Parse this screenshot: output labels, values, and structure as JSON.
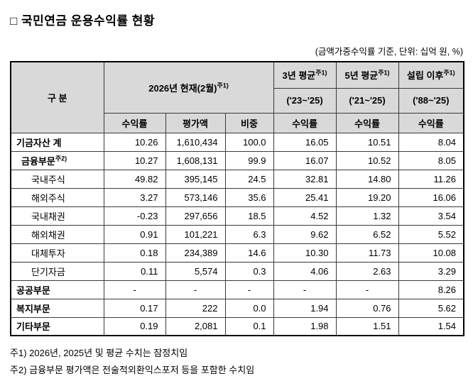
{
  "page": {
    "title": "□ 국민연금 운용수익률 현황",
    "subtitle": "(금액가중수익률 기준, 단위: 십억 원, %)"
  },
  "table": {
    "header": {
      "gubun": "구 분",
      "current": {
        "label": "2026년 현재(2월)",
        "sup": "주1)"
      },
      "avg3": {
        "label": "3년 평균",
        "sup": "주1)",
        "range": "('23~'25)"
      },
      "avg5": {
        "label": "5년 평균",
        "sup": "주1)",
        "range": "('21~'25)"
      },
      "inception": {
        "label": "설립 이후",
        "sup": "주1)",
        "range": "('88~'25)"
      },
      "sub_return": "수익률",
      "sub_value": "평가액",
      "sub_weight": "비중"
    },
    "rows": [
      {
        "label": "기금자산 계",
        "bold": true,
        "indent": 0,
        "values": [
          "10.26",
          "1,610,434",
          "100.0",
          "16.05",
          "10.51",
          "8.04"
        ]
      },
      {
        "label": "금융부문",
        "sup": "주2)",
        "bold": true,
        "indent": 1,
        "values": [
          "10.27",
          "1,608,131",
          "99.9",
          "16.07",
          "10.52",
          "8.05"
        ]
      },
      {
        "label": "국내주식",
        "bold": false,
        "indent": 2,
        "values": [
          "49.82",
          "395,145",
          "24.5",
          "32.81",
          "14.80",
          "11.26"
        ]
      },
      {
        "label": "해외주식",
        "bold": false,
        "indent": 2,
        "values": [
          "3.27",
          "573,146",
          "35.6",
          "25.41",
          "19.20",
          "16.06"
        ]
      },
      {
        "label": "국내채권",
        "bold": false,
        "indent": 2,
        "values": [
          "-0.23",
          "297,656",
          "18.5",
          "4.52",
          "1.32",
          "3.54"
        ]
      },
      {
        "label": "해외채권",
        "bold": false,
        "indent": 2,
        "values": [
          "0.91",
          "101,221",
          "6.3",
          "9.62",
          "6.52",
          "5.52"
        ]
      },
      {
        "label": "대체투자",
        "bold": false,
        "indent": 2,
        "values": [
          "0.18",
          "234,389",
          "14.6",
          "10.30",
          "11.73",
          "10.08"
        ]
      },
      {
        "label": "단기자금",
        "bold": false,
        "indent": 2,
        "values": [
          "0.11",
          "5,574",
          "0.3",
          "4.06",
          "2.63",
          "3.29"
        ]
      },
      {
        "label": "공공부문",
        "bold": true,
        "indent": 0,
        "values": [
          "-",
          "-",
          "-",
          "-",
          "-",
          "8.26"
        ]
      },
      {
        "label": "복지부문",
        "bold": true,
        "indent": 0,
        "values": [
          "0.17",
          "222",
          "0.0",
          "1.94",
          "0.76",
          "5.62"
        ]
      },
      {
        "label": "기타부문",
        "bold": true,
        "indent": 0,
        "values": [
          "0.19",
          "2,081",
          "0.1",
          "1.98",
          "1.51",
          "1.54"
        ]
      }
    ]
  },
  "notes": [
    "주1) 2026년, 2025년 및 평균 수치는 잠정치임",
    "주2) 금융부문 평가액은 전술적외환익스포저 등을 포함한 수치임"
  ]
}
